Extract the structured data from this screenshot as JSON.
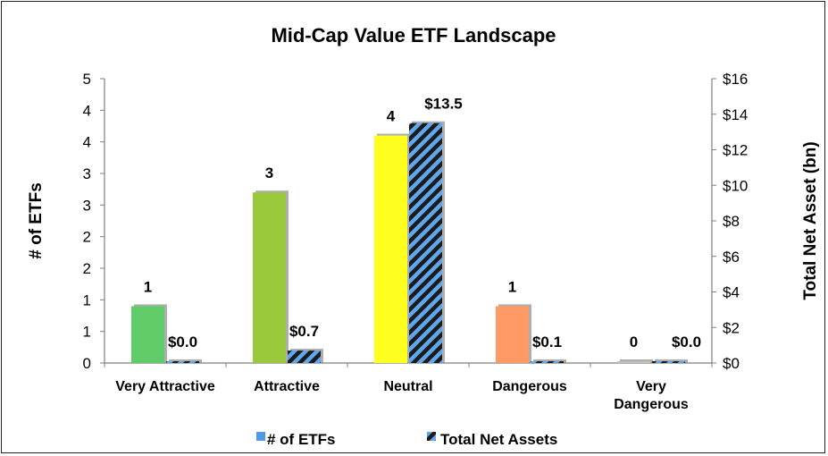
{
  "chart_data": {
    "type": "bar",
    "title": "Mid-Cap Value ETF Landscape",
    "ylabel": "# of ETFs",
    "y2label": "Total Net Asset (bn)",
    "categories": [
      "Very Attractive",
      "Attractive",
      "Neutral",
      "Dangerous",
      "Very Dangerous"
    ],
    "category_lines": [
      [
        "Very Attractive"
      ],
      [
        "Attractive"
      ],
      [
        "Neutral"
      ],
      [
        "Dangerous"
      ],
      [
        "Very",
        "Dangerous"
      ]
    ],
    "ylim": [
      0,
      5
    ],
    "y_ticks": [
      "0",
      "1",
      "1",
      "2",
      "2",
      "3",
      "3",
      "4",
      "4",
      "5"
    ],
    "y2lim": [
      0,
      16
    ],
    "y2_ticks": [
      "$0",
      "$2",
      "$4",
      "$6",
      "$8",
      "$10",
      "$12",
      "$14",
      "$16"
    ],
    "series": [
      {
        "name": "# of ETFs",
        "values": [
          1,
          3,
          4,
          1,
          0
        ],
        "labels": [
          "1",
          "3",
          "4",
          "1",
          "0"
        ],
        "colors": [
          "#5FCB69",
          "#99C93B",
          "#FFFF1F",
          "#FF9966",
          "#C0C0C0"
        ],
        "legend_color": "#4F9BE8"
      },
      {
        "name": "Total Net Assets",
        "values": [
          0.0,
          0.7,
          13.5,
          0.1,
          0.0
        ],
        "labels": [
          "$0.0",
          "$0.7",
          "$13.5",
          "$0.1",
          "$0.0"
        ],
        "stripe_colors": [
          "#1b1b1b",
          "#5FA8EE"
        ]
      }
    ],
    "legend_position": "bottom",
    "grid": false
  }
}
